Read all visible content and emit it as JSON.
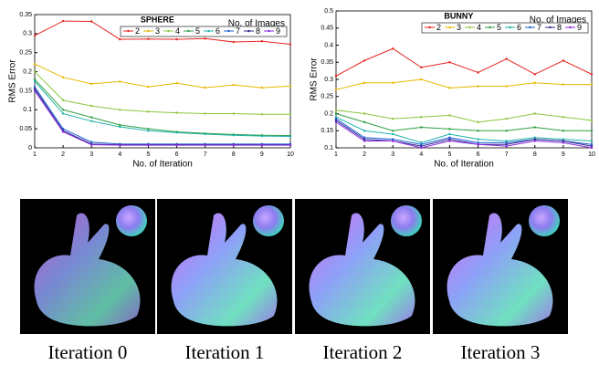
{
  "chart_data": [
    {
      "type": "line",
      "title": "SPHERE",
      "x_label": "No. of Iteration",
      "y_label": "RMS Error",
      "legend_title": "No. of Images",
      "x": [
        1,
        2,
        3,
        4,
        5,
        6,
        7,
        8,
        9,
        10
      ],
      "xlim": [
        1,
        10
      ],
      "xticks": [
        1,
        2,
        3,
        4,
        5,
        6,
        7,
        8,
        9,
        10
      ],
      "ylim": [
        0,
        0.35
      ],
      "yticks": [
        0,
        0.05,
        0.1,
        0.15,
        0.2,
        0.25,
        0.3,
        0.35
      ],
      "legend": "upper right",
      "series": [
        {
          "name": "2",
          "color": "#e8261f",
          "values": [
            0.295,
            0.333,
            0.332,
            0.285,
            0.286,
            0.285,
            0.287,
            0.278,
            0.28,
            0.272
          ]
        },
        {
          "name": "3",
          "color": "#e6b800",
          "values": [
            0.22,
            0.185,
            0.168,
            0.174,
            0.16,
            0.17,
            0.158,
            0.165,
            0.158,
            0.162
          ]
        },
        {
          "name": "4",
          "color": "#8cc63f",
          "values": [
            0.2,
            0.125,
            0.11,
            0.1,
            0.095,
            0.092,
            0.09,
            0.09,
            0.088,
            0.088
          ]
        },
        {
          "name": "5",
          "color": "#2ea043",
          "values": [
            0.18,
            0.1,
            0.08,
            0.06,
            0.05,
            0.042,
            0.038,
            0.035,
            0.033,
            0.032
          ]
        },
        {
          "name": "6",
          "color": "#20b2aa",
          "values": [
            0.175,
            0.09,
            0.07,
            0.055,
            0.045,
            0.04,
            0.036,
            0.033,
            0.031,
            0.03
          ]
        },
        {
          "name": "7",
          "color": "#1f5fd6",
          "values": [
            0.16,
            0.05,
            0.015,
            0.01,
            0.01,
            0.01,
            0.01,
            0.01,
            0.01,
            0.01
          ]
        },
        {
          "name": "8",
          "color": "#2a2a8a",
          "values": [
            0.155,
            0.045,
            0.01,
            0.008,
            0.008,
            0.008,
            0.008,
            0.008,
            0.008,
            0.008
          ]
        },
        {
          "name": "9",
          "color": "#8a2be2",
          "values": [
            0.15,
            0.042,
            0.008,
            0.007,
            0.007,
            0.007,
            0.007,
            0.007,
            0.007,
            0.007
          ]
        }
      ]
    },
    {
      "type": "line",
      "title": "BUNNY",
      "x_label": "No. of Iteration",
      "y_label": "RMS Error",
      "legend_title": "No. of Images",
      "x": [
        1,
        2,
        3,
        4,
        5,
        6,
        7,
        8,
        9,
        10
      ],
      "xlim": [
        1,
        10
      ],
      "xticks": [
        1,
        2,
        3,
        4,
        5,
        6,
        7,
        8,
        9,
        10
      ],
      "ylim": [
        0.1,
        0.5
      ],
      "yticks": [
        0.1,
        0.15,
        0.2,
        0.25,
        0.3,
        0.35,
        0.4,
        0.45,
        0.5
      ],
      "legend": "upper right",
      "series": [
        {
          "name": "2",
          "color": "#e8261f",
          "values": [
            0.31,
            0.355,
            0.39,
            0.335,
            0.35,
            0.32,
            0.36,
            0.315,
            0.355,
            0.315
          ]
        },
        {
          "name": "3",
          "color": "#e6b800",
          "values": [
            0.27,
            0.29,
            0.29,
            0.3,
            0.275,
            0.28,
            0.28,
            0.29,
            0.285,
            0.285
          ]
        },
        {
          "name": "4",
          "color": "#8cc63f",
          "values": [
            0.21,
            0.2,
            0.185,
            0.19,
            0.195,
            0.175,
            0.185,
            0.2,
            0.19,
            0.18
          ]
        },
        {
          "name": "5",
          "color": "#2ea043",
          "values": [
            0.2,
            0.175,
            0.15,
            0.16,
            0.155,
            0.15,
            0.15,
            0.16,
            0.15,
            0.15
          ]
        },
        {
          "name": "6",
          "color": "#20b2aa",
          "values": [
            0.19,
            0.15,
            0.14,
            0.115,
            0.14,
            0.125,
            0.12,
            0.13,
            0.125,
            0.12
          ]
        },
        {
          "name": "7",
          "color": "#1f5fd6",
          "values": [
            0.185,
            0.13,
            0.125,
            0.11,
            0.13,
            0.115,
            0.115,
            0.125,
            0.12,
            0.11
          ]
        },
        {
          "name": "8",
          "color": "#2a2a8a",
          "values": [
            0.18,
            0.125,
            0.12,
            0.105,
            0.125,
            0.11,
            0.11,
            0.125,
            0.12,
            0.105
          ]
        },
        {
          "name": "9",
          "color": "#8a2be2",
          "values": [
            0.175,
            0.12,
            0.12,
            0.1,
            0.12,
            0.11,
            0.105,
            0.12,
            0.115,
            0.1
          ]
        }
      ]
    }
  ],
  "images": [
    {
      "caption": "Iteration 0"
    },
    {
      "caption": "Iteration 1"
    },
    {
      "caption": "Iteration 2"
    },
    {
      "caption": "Iteration 3"
    }
  ]
}
